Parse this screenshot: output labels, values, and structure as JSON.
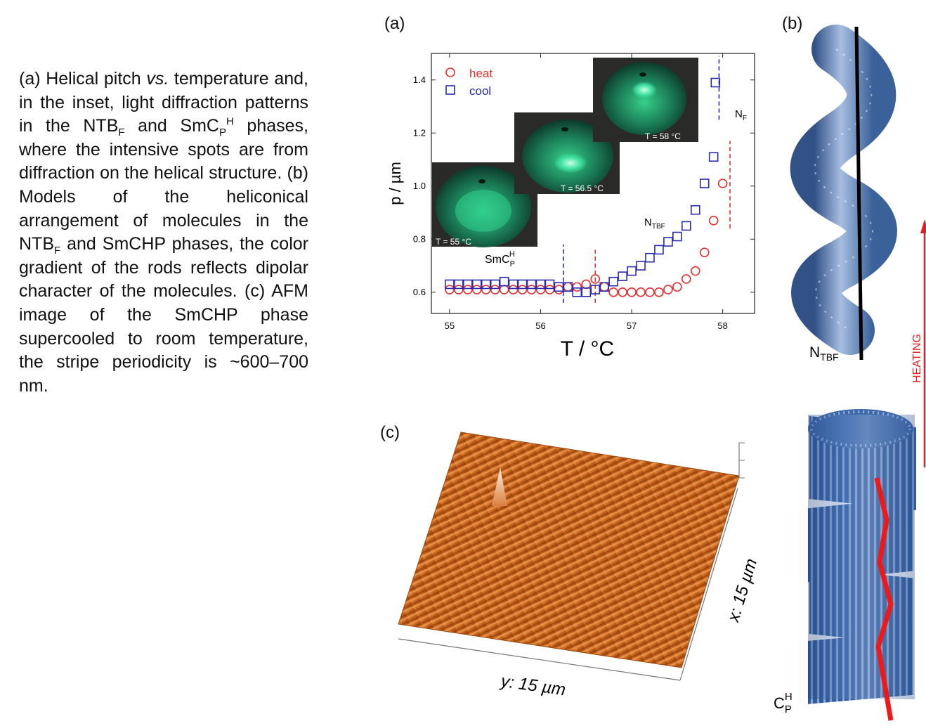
{
  "caption": {
    "p1": "(a) Helical pitch ",
    "vs": "vs.",
    "p2": " temperature and, in the inset, light diffraction patterns in the NTB",
    "s1": "F",
    "p3": " and SmC",
    "s2": "P",
    "s3": "H",
    "p4": " phases, where the intensive spots are from diffraction on the helical structure. (b) Models of the heliconical arrangement of molecules in the NTB",
    "s4": "F",
    "p5": " and SmCHP phases, the color gradient of the rods reflects dipolar character of the molecules. (c) AFM image of the SmCHP phase supercooled to room temperature, the stripe periodicity is ~600–700 nm."
  },
  "labels": {
    "a": "(a)",
    "b": "(b)",
    "c": "(c)"
  },
  "colors": {
    "heat": "#e03030",
    "cool": "#2a2ab0",
    "heating_arrow": "#e02020",
    "rod_blue": "#2f5a9c",
    "afm": "#c8621a"
  },
  "chart_data": {
    "type": "scatter",
    "xlabel": "T / °C",
    "ylabel": "p / µm",
    "xlim": [
      54.8,
      58.35
    ],
    "ylim": [
      0.52,
      1.5
    ],
    "xticks": [
      "55",
      "56",
      "57",
      "58"
    ],
    "yticks": [
      "0.6",
      "0.8",
      "1.0",
      "1.2",
      "1.4"
    ],
    "xtick_values": [
      55,
      56,
      57,
      58
    ],
    "ytick_values": [
      0.6,
      0.8,
      1.0,
      1.2,
      1.4
    ],
    "legend_position": "top-left",
    "series": [
      {
        "name": "heat",
        "marker": "circle",
        "x": [
          55.0,
          55.1,
          55.2,
          55.3,
          55.4,
          55.5,
          55.6,
          55.7,
          55.8,
          55.9,
          56.0,
          56.1,
          56.2,
          56.3,
          56.4,
          56.5,
          56.6,
          56.7,
          56.8,
          56.9,
          57.0,
          57.1,
          57.2,
          57.3,
          57.4,
          57.5,
          57.6,
          57.7,
          57.8,
          57.9,
          58.0
        ],
        "y": [
          0.61,
          0.61,
          0.61,
          0.61,
          0.61,
          0.61,
          0.61,
          0.61,
          0.61,
          0.61,
          0.61,
          0.61,
          0.61,
          0.62,
          0.62,
          0.63,
          0.65,
          0.62,
          0.6,
          0.6,
          0.6,
          0.6,
          0.6,
          0.6,
          0.61,
          0.62,
          0.65,
          0.68,
          0.75,
          0.87,
          1.01
        ]
      },
      {
        "name": "cool",
        "marker": "square",
        "x": [
          55.0,
          55.1,
          55.2,
          55.3,
          55.4,
          55.5,
          55.6,
          55.7,
          55.8,
          55.9,
          56.0,
          56.1,
          56.2,
          56.3,
          56.4,
          56.5,
          56.6,
          56.7,
          56.8,
          56.9,
          57.0,
          57.1,
          57.2,
          57.3,
          57.4,
          57.5,
          57.6,
          57.7,
          57.8,
          57.9
        ],
        "y": [
          0.63,
          0.63,
          0.63,
          0.63,
          0.63,
          0.63,
          0.64,
          0.63,
          0.63,
          0.63,
          0.63,
          0.63,
          0.62,
          0.62,
          0.6,
          0.6,
          0.61,
          0.62,
          0.64,
          0.66,
          0.68,
          0.7,
          0.73,
          0.76,
          0.79,
          0.81,
          0.85,
          0.91,
          1.01,
          1.11
        ]
      },
      {
        "name": "cool-outlier",
        "marker": "square",
        "x": [
          57.92
        ],
        "y": [
          1.39
        ]
      }
    ],
    "dashed_lines": [
      {
        "x": 56.25,
        "color": "cool",
        "y_range": [
          0.56,
          0.78
        ]
      },
      {
        "x": 56.6,
        "color": "heat",
        "y_range": [
          0.56,
          0.76
        ]
      },
      {
        "x": 57.96,
        "color": "cool",
        "y_range": [
          1.25,
          1.49
        ]
      },
      {
        "x": 58.08,
        "color": "heat",
        "y_range": [
          0.84,
          1.17
        ]
      }
    ],
    "annotations": {
      "smc": "SmC",
      "smc_sub": "P",
      "smc_sup": "H",
      "ntbf": "N",
      "ntbf_sub": "TBF",
      "nf": "N",
      "nf_sub": "F"
    },
    "insets": [
      {
        "label": "T = 55 °C"
      },
      {
        "label": "T = 56.5 °C"
      },
      {
        "label": "T = 58 °C"
      }
    ]
  },
  "models": {
    "ntbf": "N",
    "ntbf_sub": "TBF",
    "smc": "SmC",
    "smc_sub": "P",
    "smc_sup": "H",
    "heating": "HEATING"
  },
  "afm": {
    "x_label": "x: 15 µm",
    "y_label": "y: 15 µm"
  }
}
